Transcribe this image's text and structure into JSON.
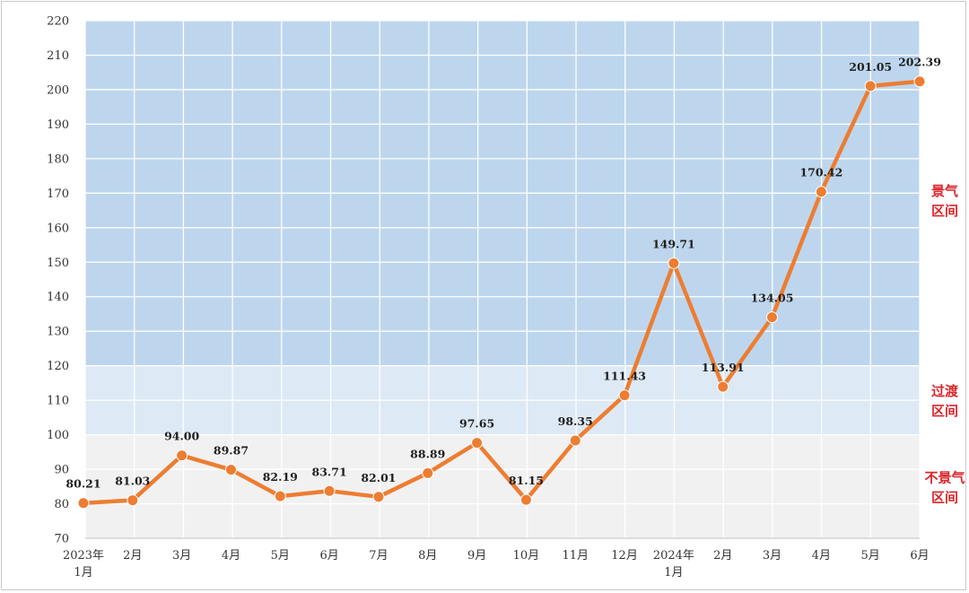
{
  "chart_data": {
    "type": "line",
    "categories": [
      [
        "2023年",
        "1月"
      ],
      [
        "2月"
      ],
      [
        "3月"
      ],
      [
        "4月"
      ],
      [
        "5月"
      ],
      [
        "6月"
      ],
      [
        "7月"
      ],
      [
        "8月"
      ],
      [
        "9月"
      ],
      [
        "10月"
      ],
      [
        "11月"
      ],
      [
        "12月"
      ],
      [
        "2024年",
        "1月"
      ],
      [
        "2月"
      ],
      [
        "3月"
      ],
      [
        "4月"
      ],
      [
        "5月"
      ],
      [
        "6月"
      ]
    ],
    "values": [
      80.21,
      81.03,
      94.0,
      89.87,
      82.19,
      83.71,
      82.01,
      88.89,
      97.65,
      81.15,
      98.35,
      111.43,
      149.71,
      113.91,
      134.05,
      170.42,
      201.05,
      202.39
    ],
    "value_labels": [
      "80.21",
      "81.03",
      "94.00",
      "89.87",
      "82.19",
      "83.71",
      "82.01",
      "88.89",
      "97.65",
      "81.15",
      "98.35",
      "111.43",
      "149.71",
      "113.91",
      "134.05",
      "170.42",
      "201.05",
      "202.39"
    ],
    "ylim": [
      70,
      220
    ],
    "yticks": [
      70,
      80,
      90,
      100,
      110,
      120,
      130,
      140,
      150,
      160,
      170,
      180,
      190,
      200,
      210,
      220
    ],
    "grid": true,
    "bands": [
      {
        "from": 70,
        "to": 100,
        "label": [
          "不景气",
          "区间"
        ],
        "color": "#f1f1f1"
      },
      {
        "from": 100,
        "to": 120,
        "label": [
          "过渡",
          "区间"
        ],
        "color": "#dde9f5"
      },
      {
        "from": 120,
        "to": 220,
        "label": [
          "景气",
          "区间"
        ],
        "color": "#bdd6ee"
      }
    ],
    "line_color": "#ed7d31",
    "label_color": "#d9262b"
  }
}
